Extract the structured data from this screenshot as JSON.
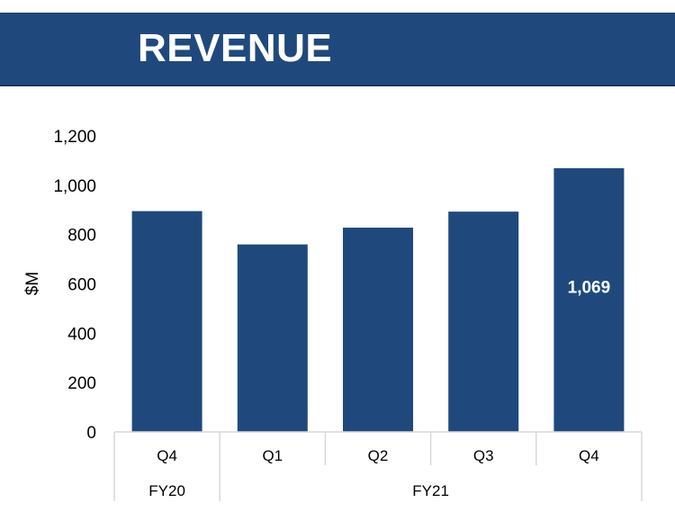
{
  "header": {
    "title": "REVENUE"
  },
  "chart_data": {
    "type": "bar",
    "title": "",
    "ylabel": "$M",
    "xlabel": "",
    "ylim": [
      0,
      1200
    ],
    "yticks": [
      "0",
      "200",
      "400",
      "600",
      "800",
      "1,000",
      "1,200"
    ],
    "categories": [
      "Q4",
      "Q1",
      "Q2",
      "Q3",
      "Q4"
    ],
    "groups": [
      {
        "label": "FY20",
        "span": 1
      },
      {
        "label": "FY21",
        "span": 4
      }
    ],
    "values": [
      895,
      760,
      828,
      893,
      1069
    ],
    "data_labels": [
      "",
      "",
      "",
      "",
      "1,069"
    ],
    "bar_color": "#1f497d",
    "grid": false,
    "legend": "none"
  }
}
